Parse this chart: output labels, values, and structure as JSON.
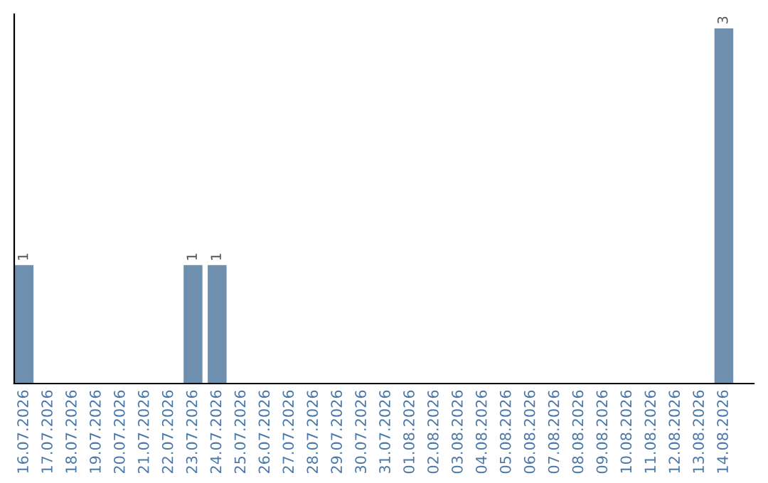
{
  "chart_data": {
    "type": "bar",
    "categories": [
      "16.07.2026",
      "17.07.2026",
      "18.07.2026",
      "19.07.2026",
      "20.07.2026",
      "21.07.2026",
      "22.07.2026",
      "23.07.2026",
      "24.07.2026",
      "25.07.2026",
      "26.07.2026",
      "27.07.2026",
      "28.07.2026",
      "29.07.2026",
      "30.07.2026",
      "31.07.2026",
      "01.08.2026",
      "02.08.2026",
      "03.08.2026",
      "04.08.2026",
      "05.08.2026",
      "06.08.2026",
      "07.08.2026",
      "08.08.2026",
      "09.08.2026",
      "10.08.2026",
      "11.08.2026",
      "12.08.2026",
      "13.08.2026",
      "14.08.2026"
    ],
    "values": [
      1,
      0,
      0,
      0,
      0,
      0,
      0,
      1,
      1,
      0,
      0,
      0,
      0,
      0,
      0,
      0,
      0,
      0,
      0,
      0,
      0,
      0,
      0,
      0,
      0,
      0,
      0,
      0,
      0,
      3
    ],
    "value_labels": [
      "1",
      null,
      null,
      null,
      null,
      null,
      null,
      "1",
      "1",
      null,
      null,
      null,
      null,
      null,
      null,
      null,
      null,
      null,
      null,
      null,
      null,
      null,
      null,
      null,
      null,
      null,
      null,
      null,
      null,
      "3"
    ],
    "color": "#6e8fae",
    "tick_labels": "x"
  }
}
